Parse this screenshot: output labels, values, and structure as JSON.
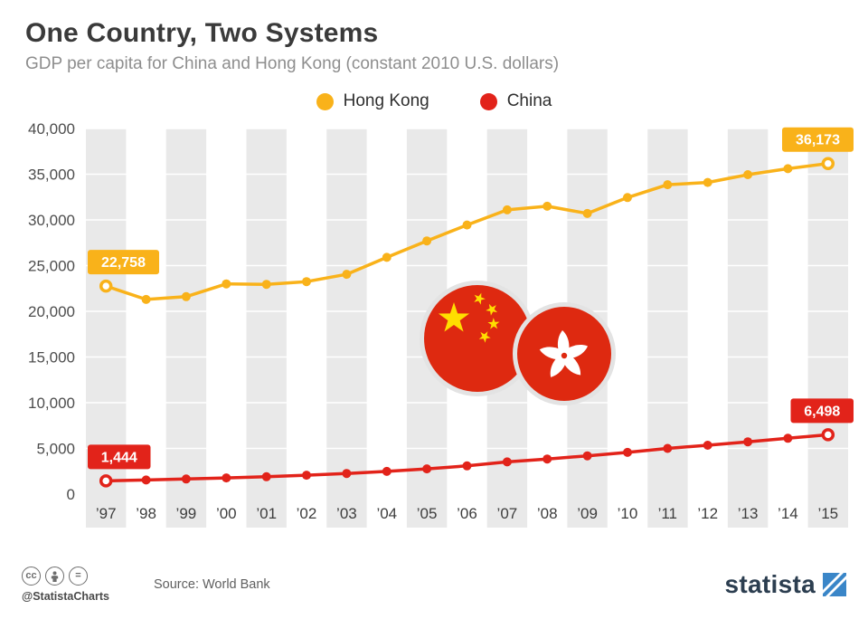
{
  "header": {
    "title": "One Country, Two Systems",
    "subtitle": "GDP per capita for China and Hong Kong (constant 2010 U.S. dollars)"
  },
  "legend": {
    "items": [
      {
        "label": "Hong Kong",
        "color": "#f9b21a"
      },
      {
        "label": "China",
        "color": "#e2231a"
      }
    ]
  },
  "chart_data": {
    "type": "line",
    "title": "One Country, Two Systems",
    "subtitle": "GDP per capita for China and Hong Kong (constant 2010 U.S. dollars)",
    "categories": [
      "’97",
      "’98",
      "’99",
      "’00",
      "’01",
      "’02",
      "’03",
      "’04",
      "’05",
      "’06",
      "’07",
      "’08",
      "’09",
      "’10",
      "’11",
      "’12",
      "’13",
      "’14",
      "’15"
    ],
    "series": [
      {
        "name": "Hong Kong",
        "color": "#f9b21a",
        "values": [
          22758,
          21300,
          21600,
          23000,
          22950,
          23250,
          24050,
          25900,
          27700,
          29450,
          31100,
          31500,
          30700,
          32450,
          33850,
          34100,
          34950,
          35600,
          36173
        ]
      },
      {
        "name": "China",
        "color": "#e2231a",
        "values": [
          1444,
          1545,
          1655,
          1770,
          1905,
          2065,
          2260,
          2485,
          2760,
          3090,
          3520,
          3840,
          4190,
          4560,
          5000,
          5350,
          5720,
          6110,
          6498
        ]
      }
    ],
    "ylim": [
      0,
      40000
    ],
    "y_ticks": [
      0,
      5000,
      10000,
      15000,
      20000,
      25000,
      30000,
      35000,
      40000
    ],
    "y_tick_labels": [
      "0",
      "5,000",
      "10,000",
      "15,000",
      "20,000",
      "25,000",
      "30,000",
      "35,000",
      "40,000"
    ],
    "value_labels": [
      {
        "series": 0,
        "index": 0,
        "text": "22,758"
      },
      {
        "series": 0,
        "index": 18,
        "text": "36,173"
      },
      {
        "series": 1,
        "index": 0,
        "text": "1,444"
      },
      {
        "series": 1,
        "index": 18,
        "text": "6,498"
      }
    ],
    "legend_position": "top",
    "grid": "vertical-bands",
    "band_color": "#e9e9e9",
    "flag_red": "#de2910",
    "flag_star_yellow": "#ffde00"
  },
  "footer": {
    "license_icons": [
      "cc-icon",
      "attribution-icon",
      "no-derivatives-icon"
    ],
    "cc_label": "cc",
    "nd_label": "=",
    "handle": "@StatistaCharts",
    "source": "Source: World Bank",
    "brand": "statista",
    "brand_blue": "#3a86c8"
  }
}
